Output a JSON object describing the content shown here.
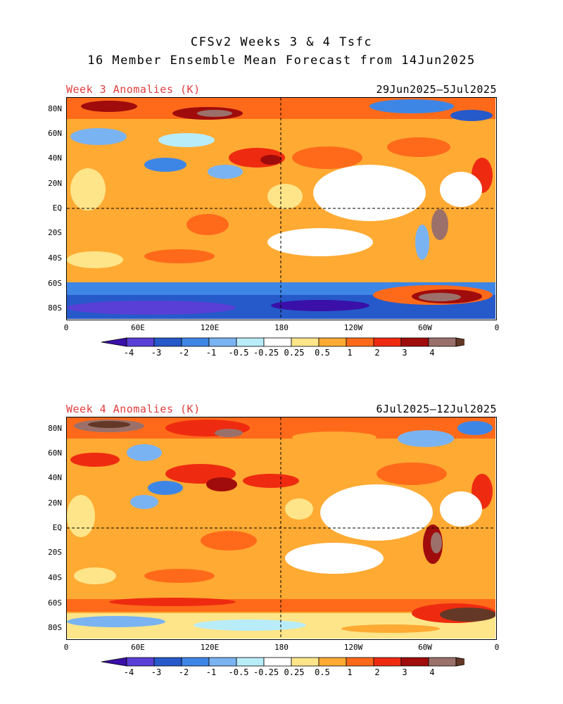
{
  "header": {
    "title_line1": "CFSv2 Weeks 3 & 4 Tsfc",
    "title_line2": "16 Member Ensemble Mean Forecast from 14Jun2025"
  },
  "panels": [
    {
      "title": "Week 3 Anomalies (K)",
      "date_range": "29Jun2025–5Jul2025"
    },
    {
      "title": "Week 4 Anomalies (K)",
      "date_range": "6Jul2025–12Jul2025"
    }
  ],
  "lat_labels": [
    "80N",
    "60N",
    "40N",
    "20N",
    "EQ",
    "20S",
    "40S",
    "60S",
    "80S"
  ],
  "lon_labels": [
    "0",
    "60E",
    "120E",
    "180",
    "120W",
    "60W",
    "0"
  ],
  "colorbar": {
    "labels": [
      "-4",
      "-3",
      "-2",
      "-1",
      "-0.5",
      "-0.25",
      "0.25",
      "0.5",
      "1",
      "2",
      "3",
      "4"
    ],
    "colors": [
      "#3a10a8",
      "#5a3fd6",
      "#2659c9",
      "#3e86e6",
      "#7ab3f2",
      "#b8ecf8",
      "#ffffff",
      "#ffe589",
      "#ffaa33",
      "#ff6a1a",
      "#ee2b10",
      "#a00c0c",
      "#9b706a",
      "#643826"
    ]
  },
  "map_colors": {
    "ocean_neutral": "#ffffff",
    "warm_light": "#ffe589",
    "warm": "#ffaa33",
    "warm_strong": "#ff6a1a",
    "hot": "#ee2b10",
    "very_hot": "#a00c0c",
    "extreme": "#9b706a",
    "extreme2": "#643826",
    "cool_light": "#b8ecf8",
    "cool": "#7ab3f2",
    "cool_mid": "#3e86e6",
    "cold": "#2659c9",
    "very_cold": "#5a3fd6",
    "extreme_cold": "#3a10a8"
  }
}
